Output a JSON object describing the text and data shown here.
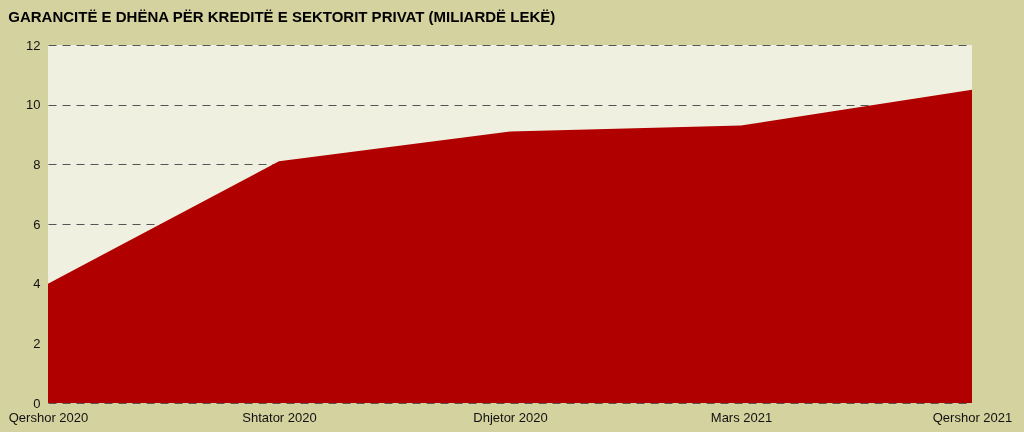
{
  "chart_data": {
    "type": "area",
    "title": "GARANCITË E DHËNA PËR KREDITË E SEKTORIT PRIVAT (MILIARDË LEKË)",
    "categories": [
      "Qershor 2020",
      "Shtator 2020",
      "Dhjetor 2020",
      "Mars 2021",
      "Qershor 2021"
    ],
    "values": [
      4.0,
      8.1,
      9.1,
      9.3,
      10.5
    ],
    "color": "#b00000",
    "ylim": [
      0,
      12
    ],
    "yticks": [
      0,
      2,
      4,
      6,
      8,
      10,
      12
    ],
    "grid": "y"
  }
}
